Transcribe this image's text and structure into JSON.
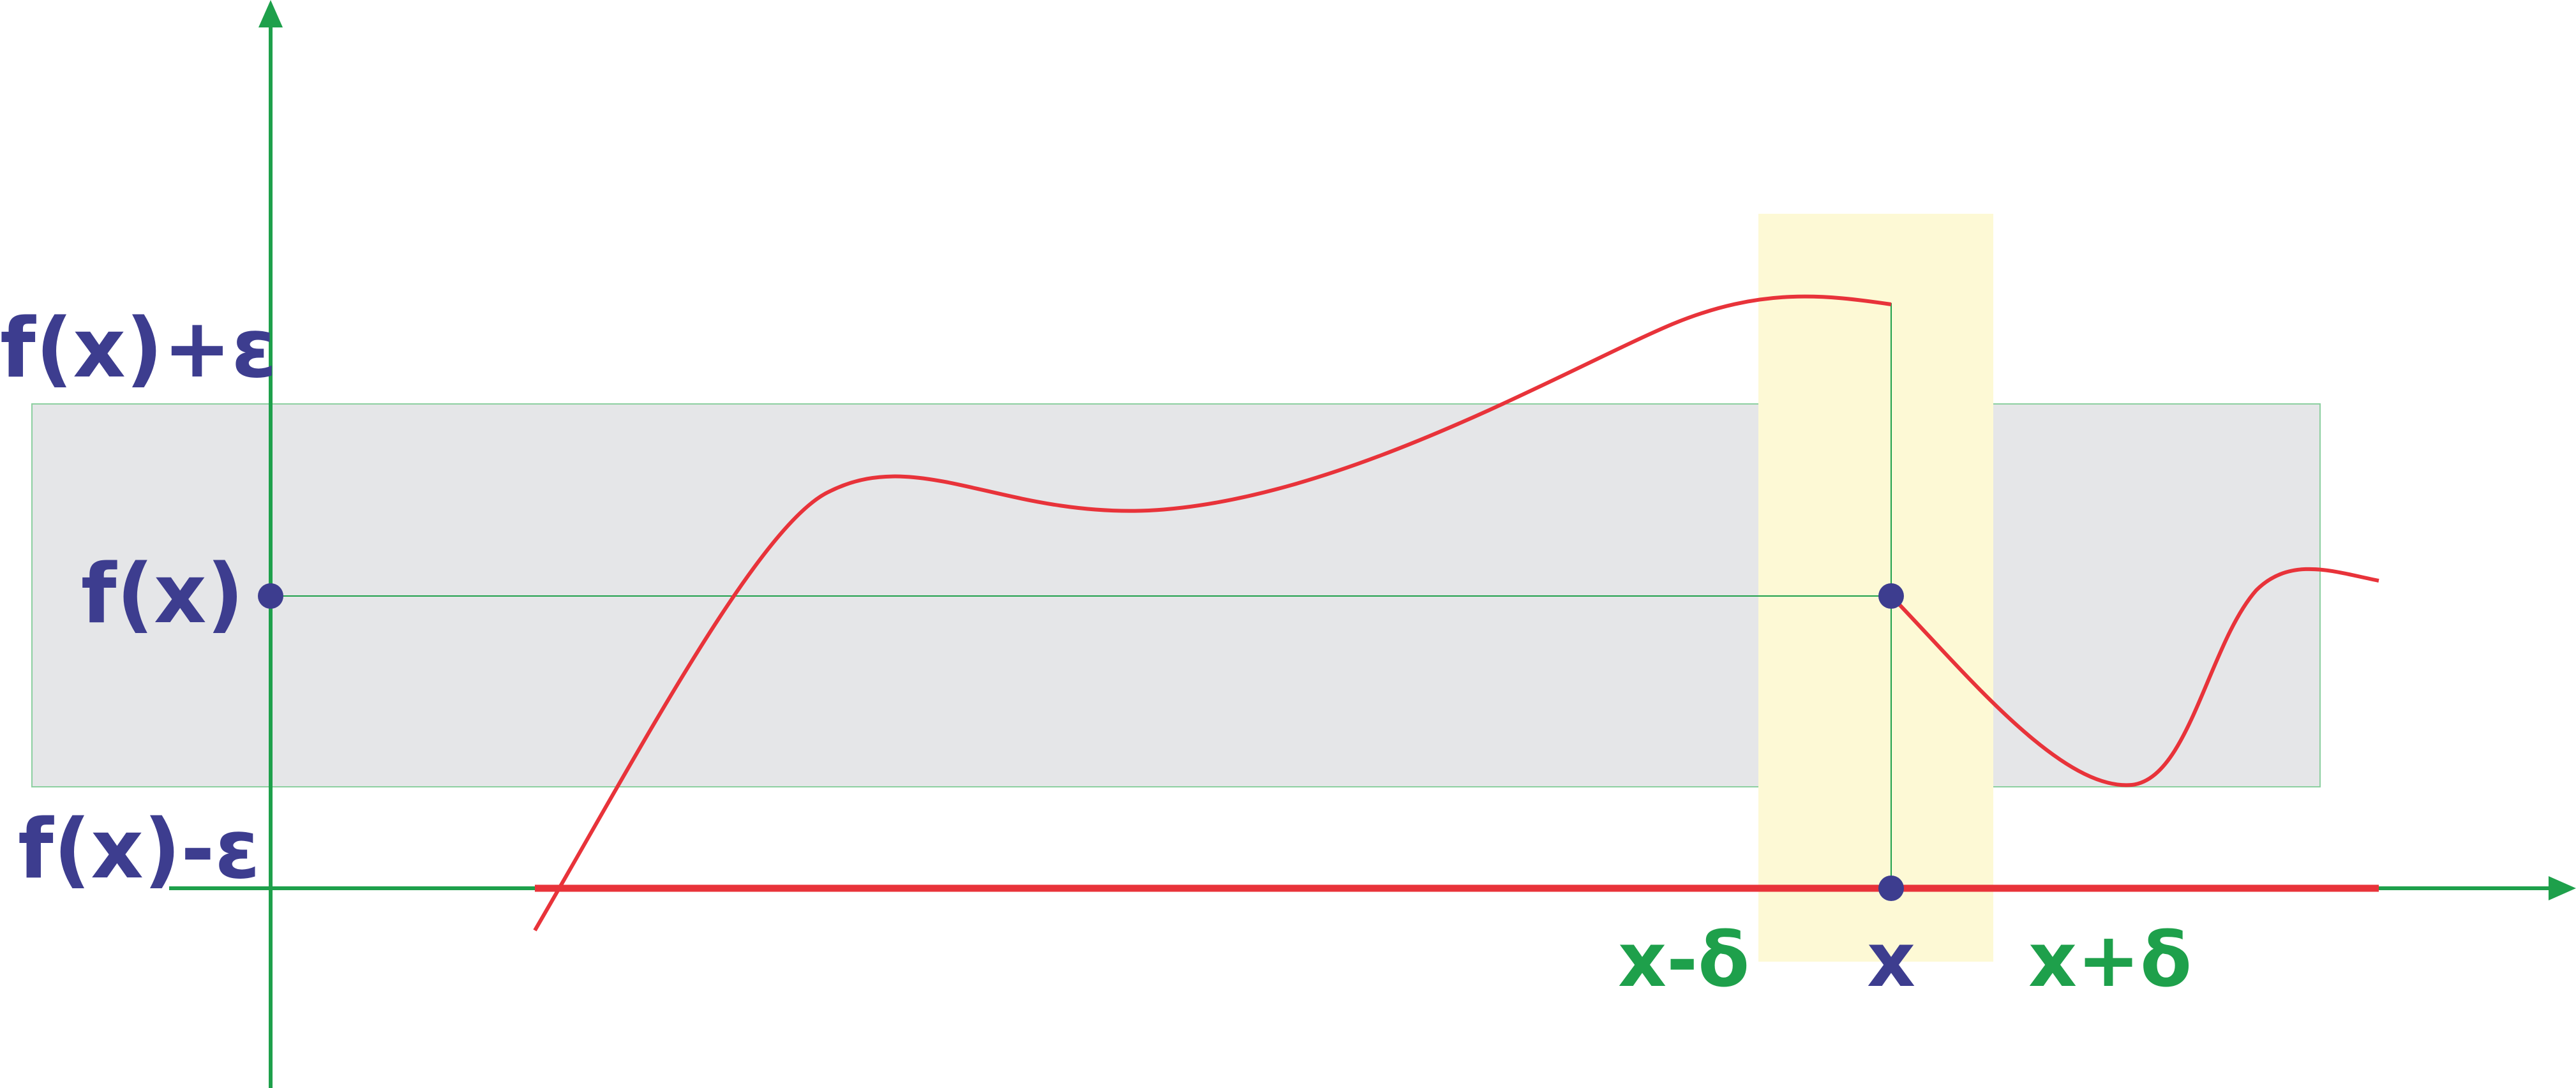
{
  "labels": {
    "y_upper": "f(x)+ε",
    "y_mid": "f(x)",
    "y_lower": "f(x)-ε",
    "x_left": "x-δ",
    "x_mid": "x",
    "x_right": "x+δ"
  },
  "colors": {
    "axis": "#1ea04b",
    "curve": "#e8333a",
    "epsilon_band": "#e5e6e8",
    "delta_band": "#fdf9d5",
    "point": "#3d3d8f",
    "label_blue": "#3d3d8f",
    "label_green": "#1ea04b"
  }
}
